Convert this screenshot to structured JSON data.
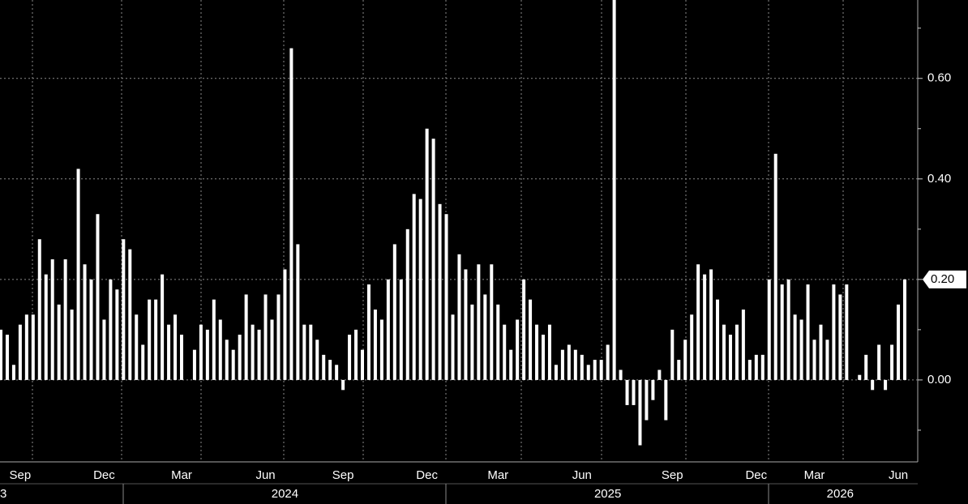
{
  "chart_data": {
    "type": "bar",
    "color": "#ffffff",
    "values": [
      0.1,
      0.09,
      0.03,
      0.11,
      0.13,
      0.13,
      0.28,
      0.21,
      0.24,
      0.15,
      0.24,
      0.14,
      0.42,
      0.23,
      0.2,
      0.33,
      0.12,
      0.2,
      0.18,
      0.28,
      0.26,
      0.13,
      0.07,
      0.16,
      0.16,
      0.21,
      0.11,
      0.13,
      0.09,
      0.0,
      0.06,
      0.11,
      0.1,
      0.16,
      0.12,
      0.08,
      0.06,
      0.09,
      0.17,
      0.11,
      0.1,
      0.17,
      0.12,
      0.17,
      0.22,
      0.66,
      0.27,
      0.11,
      0.11,
      0.08,
      0.05,
      0.04,
      0.03,
      -0.02,
      0.09,
      0.1,
      0.06,
      0.19,
      0.14,
      0.12,
      0.2,
      0.27,
      0.2,
      0.3,
      0.37,
      0.36,
      0.5,
      0.48,
      0.35,
      0.33,
      0.13,
      0.25,
      0.22,
      0.15,
      0.23,
      0.17,
      0.23,
      0.15,
      0.11,
      0.06,
      0.12,
      0.2,
      0.16,
      0.11,
      0.09,
      0.11,
      0.03,
      0.06,
      0.07,
      0.06,
      0.05,
      0.03,
      0.04,
      0.04,
      0.07,
      0.76,
      0.02,
      -0.05,
      -0.05,
      -0.13,
      -0.08,
      -0.04,
      0.02,
      -0.08,
      0.1,
      0.04,
      0.08,
      0.13,
      0.23,
      0.21,
      0.22,
      0.16,
      0.11,
      0.09,
      0.11,
      0.14,
      0.04,
      0.05,
      0.05,
      0.2,
      0.45,
      0.19,
      0.2,
      0.13,
      0.12,
      0.19,
      0.08,
      0.11,
      0.08,
      0.19,
      0.17,
      0.19,
      0.0,
      0.01,
      0.05,
      -0.02,
      0.07,
      -0.02,
      0.07,
      0.15,
      0.2
    ],
    "categories": [
      null,
      null,
      null,
      "Sep",
      null,
      null,
      null,
      null,
      null,
      null,
      null,
      null,
      null,
      null,
      null,
      null,
      "Dec",
      null,
      null,
      null,
      null,
      null,
      null,
      null,
      null,
      null,
      null,
      null,
      "Mar",
      null,
      null,
      null,
      null,
      null,
      null,
      null,
      null,
      null,
      null,
      null,
      null,
      "Jun",
      null,
      null,
      null,
      null,
      null,
      null,
      null,
      null,
      null,
      null,
      null,
      "Sep",
      null,
      null,
      null,
      null,
      null,
      null,
      null,
      null,
      null,
      null,
      null,
      null,
      "Dec",
      null,
      null,
      null,
      null,
      null,
      null,
      null,
      null,
      null,
      null,
      "Mar",
      null,
      null,
      null,
      null,
      null,
      null,
      null,
      null,
      null,
      null,
      null,
      null,
      "Jun",
      null,
      null,
      null,
      null,
      null,
      null,
      null,
      null,
      null,
      null,
      null,
      null,
      null,
      "Sep",
      null,
      null,
      null,
      null,
      null,
      null,
      null,
      null,
      null,
      null,
      null,
      null,
      "Dec",
      null,
      null,
      null,
      null,
      null,
      null,
      null,
      null,
      "Mar",
      null,
      null,
      null,
      null,
      null,
      null,
      null,
      null,
      null,
      null,
      null,
      null,
      "Jun",
      null
    ],
    "years": [
      "3",
      null,
      null,
      null,
      null,
      null,
      null,
      null,
      null,
      null,
      null,
      null,
      null,
      null,
      null,
      null,
      null,
      null,
      null,
      null,
      null,
      null,
      null,
      null,
      null,
      null,
      null,
      null,
      null,
      null,
      null,
      null,
      null,
      null,
      null,
      null,
      null,
      null,
      null,
      null,
      null,
      null,
      null,
      null,
      "2024",
      null,
      null,
      null,
      null,
      null,
      null,
      null,
      null,
      null,
      null,
      null,
      null,
      null,
      null,
      null,
      null,
      null,
      null,
      null,
      null,
      null,
      null,
      null,
      null,
      null,
      null,
      null,
      null,
      null,
      null,
      null,
      null,
      null,
      null,
      null,
      null,
      null,
      null,
      null,
      null,
      null,
      null,
      null,
      null,
      null,
      null,
      null,
      null,
      null,
      "2025",
      null,
      null,
      null,
      null,
      null,
      null,
      null,
      null,
      null,
      null,
      null,
      null,
      null,
      null,
      null,
      null,
      null,
      null,
      null,
      null,
      null,
      null,
      null,
      null,
      null,
      null,
      null,
      null,
      null,
      null,
      null,
      null,
      null,
      null,
      null,
      "2026",
      null,
      null,
      null,
      null,
      null,
      null,
      null,
      null,
      null,
      null
    ],
    "ylim": [
      -0.163,
      0.756
    ],
    "yticks": [
      {
        "value": 0,
        "label": "0.00"
      },
      {
        "value": 0.2,
        "label": "0.20"
      },
      {
        "value": 0.4,
        "label": "0.40"
      },
      {
        "value": 0.6,
        "label": "0.60"
      }
    ],
    "minor_yticks": [
      -0.1,
      0.1,
      0.3,
      0.5,
      0.7
    ],
    "last_label": "0.20",
    "grid": true
  }
}
